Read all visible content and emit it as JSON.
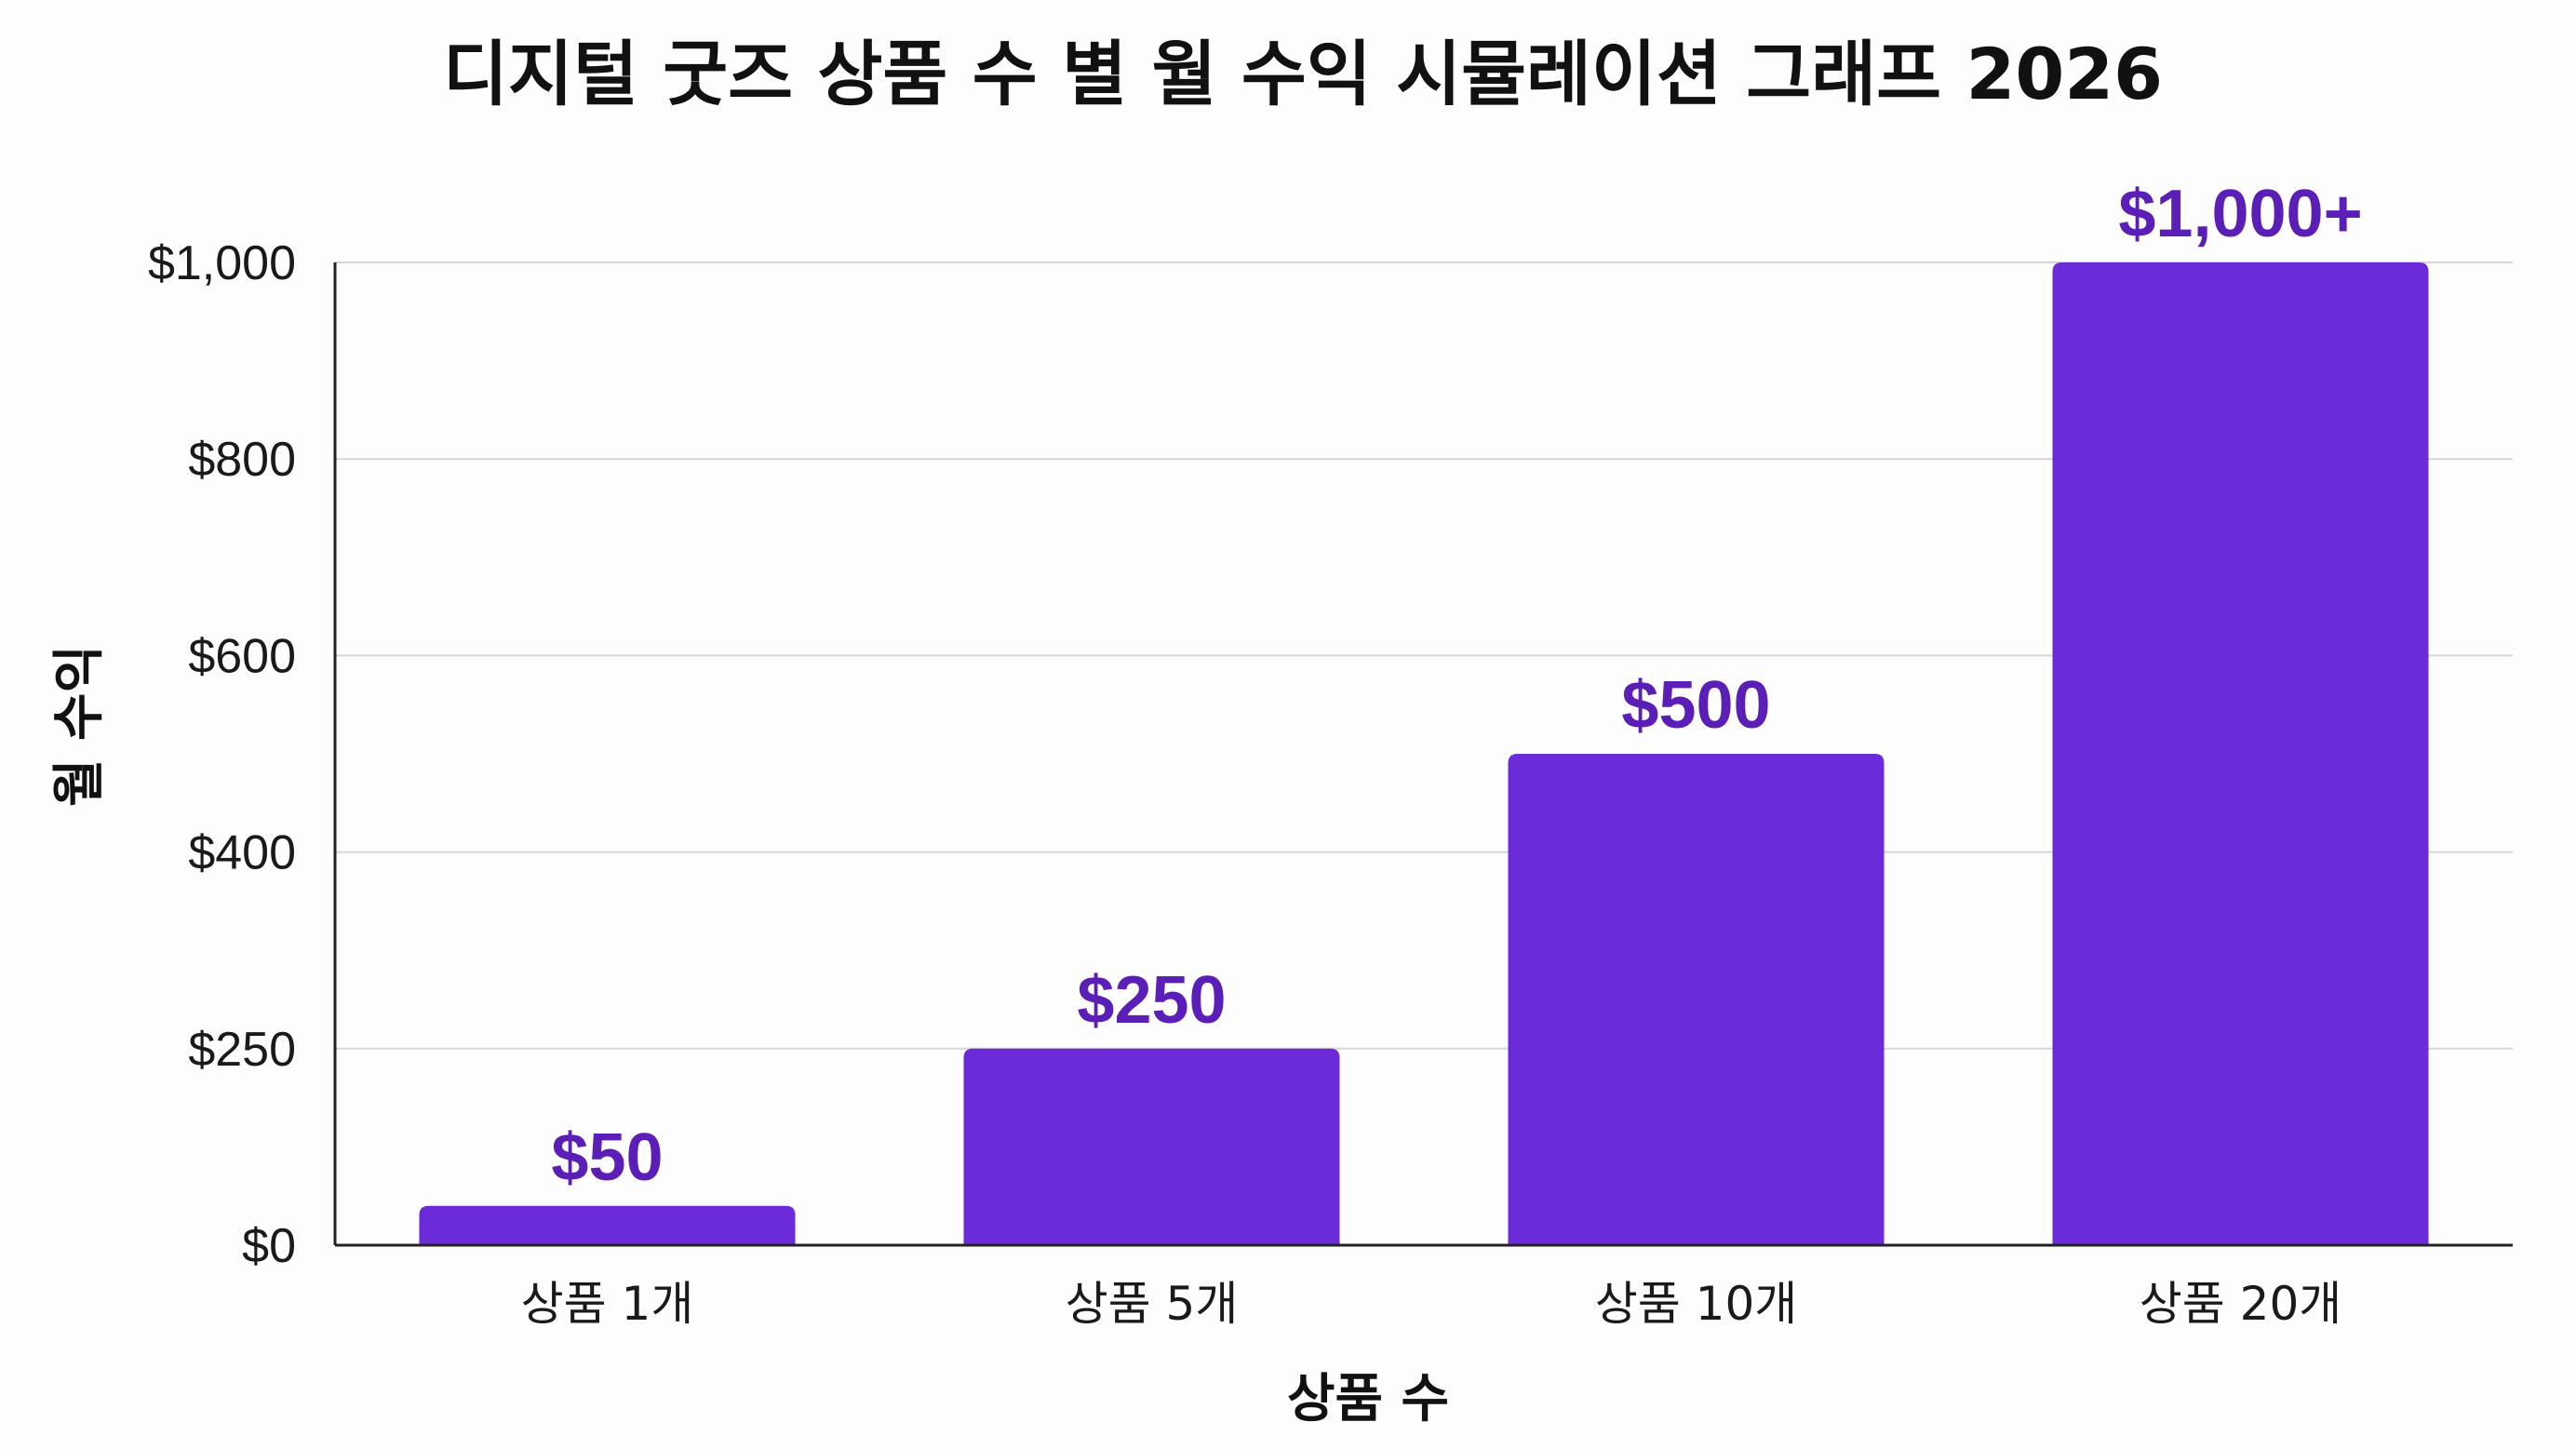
{
  "chart_data": {
    "type": "bar",
    "title": "디지털 굿즈 상품 수 별 월 수익 시뮬레이션 그래프 2026",
    "xlabel": "상품 수",
    "ylabel": "월 수익",
    "categories": [
      "상품 1개",
      "상품 5개",
      "상품 10개",
      "상품 20개"
    ],
    "values": [
      50,
      250,
      500,
      1000
    ],
    "data_labels": [
      "$50",
      "$250",
      "$500",
      "$1,000+"
    ],
    "ylim": [
      0,
      1000
    ],
    "yticks": [
      0,
      250,
      400,
      600,
      800,
      1000
    ],
    "ytick_labels": [
      "$0",
      "$250",
      "$400",
      "$600",
      "$800",
      "$1,000"
    ],
    "grid": true,
    "legend": "none",
    "colors": {
      "bar": "#6c2bd9",
      "label": "#5b1fb8",
      "grid": "#d6d6d6",
      "axis": "#222222"
    }
  }
}
